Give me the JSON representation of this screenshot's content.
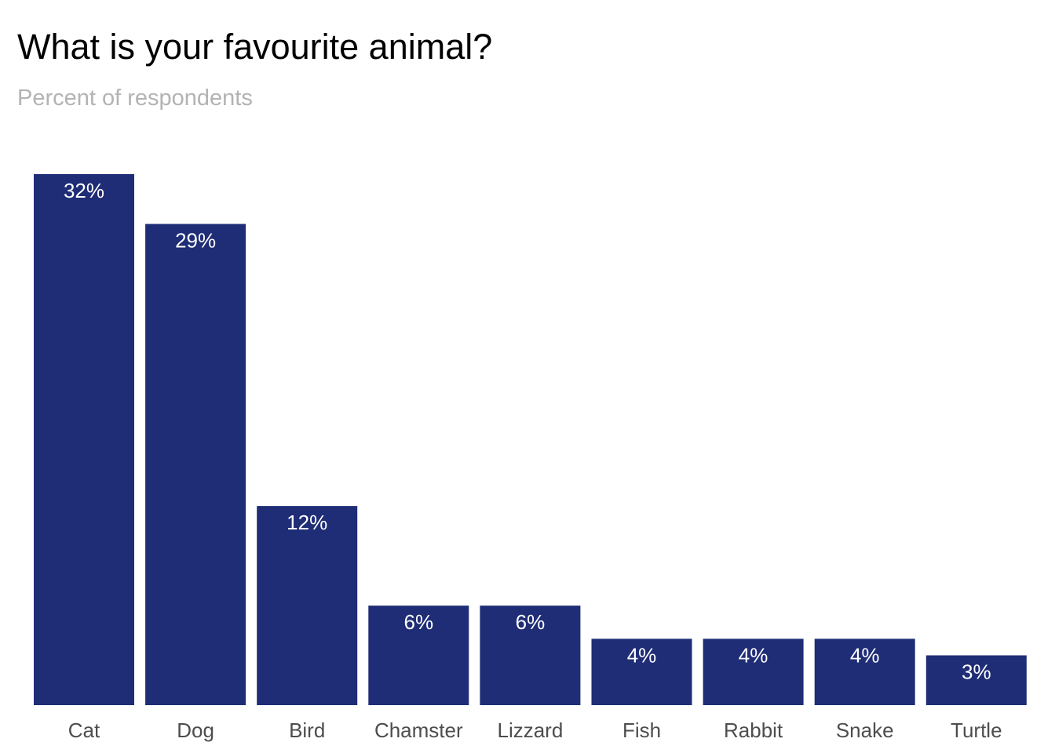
{
  "chart_data": {
    "type": "bar",
    "title": "What is your favourite animal?",
    "subtitle": "Percent of respondents",
    "xlabel": "",
    "ylabel": "",
    "categories": [
      "Cat",
      "Dog",
      "Bird",
      "Chamster",
      "Lizzard",
      "Fish",
      "Rabbit",
      "Snake",
      "Turtle"
    ],
    "values": [
      32,
      29,
      12,
      6,
      6,
      4,
      4,
      4,
      3
    ],
    "data_labels": [
      "32%",
      "29%",
      "12%",
      "6%",
      "6%",
      "4%",
      "4%",
      "4%",
      "3%"
    ],
    "unit": "%",
    "ylim": [
      0,
      32
    ],
    "grid": false,
    "legend": "none",
    "bar_color": "#1f2d76"
  }
}
